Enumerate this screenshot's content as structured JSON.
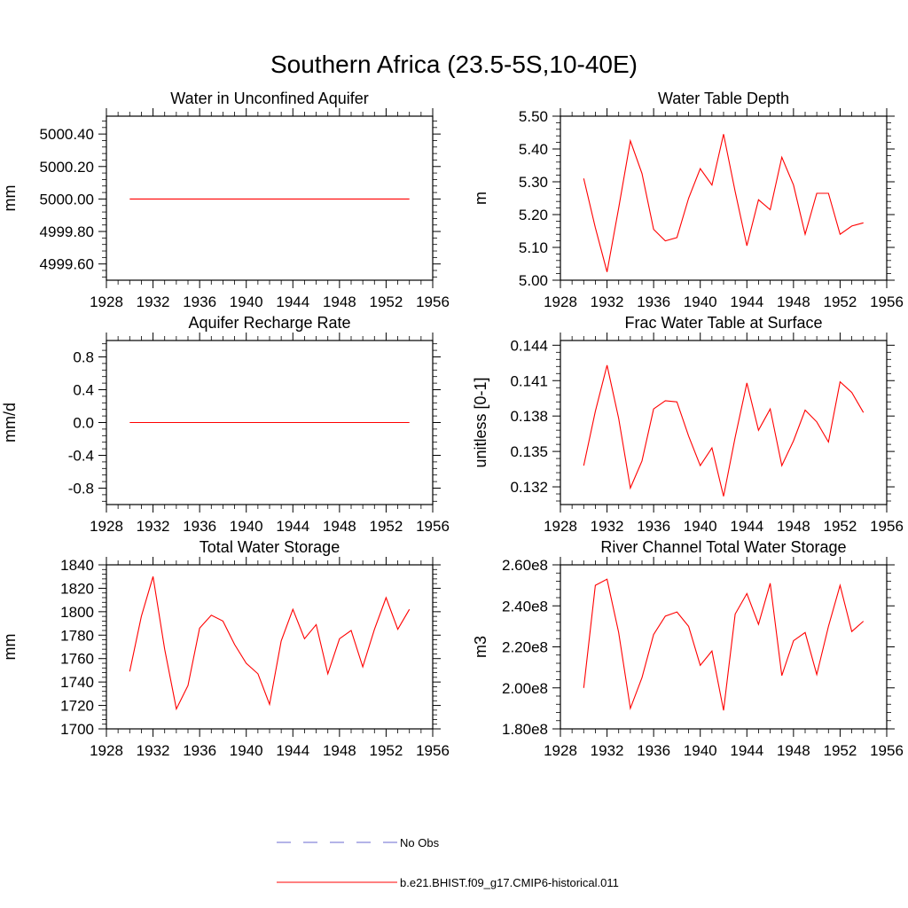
{
  "figure": {
    "title": "Southern Africa (23.5-5S,10-40E)"
  },
  "legend": {
    "placement": "bottom-center",
    "entries": [
      {
        "label": "No Obs",
        "color": "#6a6ad0",
        "style": "dashed"
      },
      {
        "label": "b.e21.BHIST.f09_g17.CMIP6-historical.011",
        "color": "#ff0000",
        "style": "solid"
      }
    ]
  },
  "chart_data": [
    {
      "type": "line",
      "title": "Water in Unconfined Aquifer",
      "ylabel": "mm",
      "xlim": [
        1928,
        1956
      ],
      "ylim": [
        4999.5,
        5000.51
      ],
      "xticks": [
        1928,
        1932,
        1936,
        1940,
        1944,
        1948,
        1952,
        1956
      ],
      "yticks": [
        4999.6,
        4999.8,
        5000.0,
        5000.2,
        5000.4
      ],
      "ytick_labels": [
        "4999.60",
        "4999.80",
        "5000.00",
        "5000.20",
        "5000.40"
      ],
      "grid": false,
      "series": [
        {
          "name": "b.e21.BHIST.f09_g17.CMIP6-historical.011",
          "color": "#ff0000",
          "x": [
            1930,
            1931,
            1932,
            1933,
            1934,
            1935,
            1936,
            1937,
            1938,
            1939,
            1940,
            1941,
            1942,
            1943,
            1944,
            1945,
            1946,
            1947,
            1948,
            1949,
            1950,
            1951,
            1952,
            1953,
            1954
          ],
          "y": [
            5000,
            5000,
            5000,
            5000,
            5000,
            5000,
            5000,
            5000,
            5000,
            5000,
            5000,
            5000,
            5000,
            5000,
            5000,
            5000,
            5000,
            5000,
            5000,
            5000,
            5000,
            5000,
            5000,
            5000,
            5000
          ]
        }
      ]
    },
    {
      "type": "line",
      "title": "Water Table Depth",
      "ylabel": "m",
      "xlim": [
        1928,
        1956
      ],
      "ylim": [
        5.0,
        5.5
      ],
      "xticks": [
        1928,
        1932,
        1936,
        1940,
        1944,
        1948,
        1952,
        1956
      ],
      "yticks": [
        5.0,
        5.1,
        5.2,
        5.3,
        5.4,
        5.5
      ],
      "ytick_labels": [
        "5.00",
        "5.10",
        "5.20",
        "5.30",
        "5.40",
        "5.50"
      ],
      "grid": false,
      "series": [
        {
          "name": "b.e21.BHIST.f09_g17.CMIP6-historical.011",
          "color": "#ff0000",
          "x": [
            1930,
            1931,
            1932,
            1933,
            1934,
            1935,
            1936,
            1937,
            1938,
            1939,
            1940,
            1941,
            1942,
            1943,
            1944,
            1945,
            1946,
            1947,
            1948,
            1949,
            1950,
            1951,
            1952,
            1953,
            1954
          ],
          "y": [
            5.31,
            5.16,
            5.025,
            5.22,
            5.425,
            5.325,
            5.155,
            5.12,
            5.13,
            5.25,
            5.34,
            5.29,
            5.445,
            5.27,
            5.105,
            5.245,
            5.215,
            5.375,
            5.29,
            5.14,
            5.265,
            5.265,
            5.14,
            5.165,
            5.175
          ]
        }
      ]
    },
    {
      "type": "line",
      "title": "Aquifer Recharge Rate",
      "ylabel": "mm/d",
      "xlim": [
        1928,
        1956
      ],
      "ylim": [
        -1.0,
        1.0
      ],
      "xticks": [
        1928,
        1932,
        1936,
        1940,
        1944,
        1948,
        1952,
        1956
      ],
      "yticks": [
        -0.8,
        -0.4,
        0.0,
        0.4,
        0.8
      ],
      "ytick_labels": [
        "-0.8",
        "-0.4",
        "0.0",
        "0.4",
        "0.8"
      ],
      "grid": false,
      "series": [
        {
          "name": "b.e21.BHIST.f09_g17.CMIP6-historical.011",
          "color": "#ff0000",
          "x": [
            1930,
            1931,
            1932,
            1933,
            1934,
            1935,
            1936,
            1937,
            1938,
            1939,
            1940,
            1941,
            1942,
            1943,
            1944,
            1945,
            1946,
            1947,
            1948,
            1949,
            1950,
            1951,
            1952,
            1953,
            1954
          ],
          "y": [
            0,
            0,
            0,
            0,
            0,
            0,
            0,
            0,
            0,
            0,
            0,
            0,
            0,
            0,
            0,
            0,
            0,
            0,
            0,
            0,
            0,
            0,
            0,
            0,
            0
          ]
        }
      ]
    },
    {
      "type": "line",
      "title": "Frac Water Table at Surface",
      "ylabel": "unitless [0-1]",
      "xlim": [
        1928,
        1956
      ],
      "ylim": [
        0.1305,
        0.1444
      ],
      "xticks": [
        1928,
        1932,
        1936,
        1940,
        1944,
        1948,
        1952,
        1956
      ],
      "yticks": [
        0.132,
        0.135,
        0.138,
        0.141,
        0.144
      ],
      "ytick_labels": [
        "0.132",
        "0.135",
        "0.138",
        "0.141",
        "0.144"
      ],
      "grid": false,
      "series": [
        {
          "name": "b.e21.BHIST.f09_g17.CMIP6-historical.011",
          "color": "#ff0000",
          "x": [
            1930,
            1931,
            1932,
            1933,
            1934,
            1935,
            1936,
            1937,
            1938,
            1939,
            1940,
            1941,
            1942,
            1943,
            1944,
            1945,
            1946,
            1947,
            1948,
            1949,
            1950,
            1951,
            1952,
            1953,
            1954
          ],
          "y": [
            0.1338,
            0.1384,
            0.1423,
            0.1378,
            0.1319,
            0.1342,
            0.1386,
            0.1393,
            0.1392,
            0.1363,
            0.1338,
            0.1353,
            0.1312,
            0.1362,
            0.1408,
            0.1368,
            0.1386,
            0.1338,
            0.1359,
            0.1385,
            0.1375,
            0.1358,
            0.1409,
            0.14,
            0.1383
          ]
        }
      ]
    },
    {
      "type": "line",
      "title": "Total Water Storage",
      "ylabel": "mm",
      "xlim": [
        1928,
        1956
      ],
      "ylim": [
        1700,
        1840
      ],
      "xticks": [
        1928,
        1932,
        1936,
        1940,
        1944,
        1948,
        1952,
        1956
      ],
      "yticks": [
        1700,
        1720,
        1740,
        1760,
        1780,
        1800,
        1820,
        1840
      ],
      "ytick_labels": [
        "1700",
        "1720",
        "1740",
        "1760",
        "1780",
        "1800",
        "1820",
        "1840"
      ],
      "grid": false,
      "series": [
        {
          "name": "b.e21.BHIST.f09_g17.CMIP6-historical.011",
          "color": "#ff0000",
          "x": [
            1930,
            1931,
            1932,
            1933,
            1934,
            1935,
            1936,
            1937,
            1938,
            1939,
            1940,
            1941,
            1942,
            1943,
            1944,
            1945,
            1946,
            1947,
            1948,
            1949,
            1950,
            1951,
            1952,
            1953,
            1954
          ],
          "y": [
            1749,
            1796,
            1830,
            1768,
            1717,
            1737,
            1786,
            1797,
            1792,
            1772,
            1756,
            1747,
            1721,
            1775,
            1802,
            1777,
            1789,
            1747,
            1777,
            1784,
            1753,
            1785,
            1812,
            1785,
            1802
          ]
        }
      ]
    },
    {
      "type": "line",
      "title": "River Channel Total Water Storage",
      "ylabel": "m3",
      "xlim": [
        1928,
        1956
      ],
      "ylim": [
        180000000,
        260000000
      ],
      "xticks": [
        1928,
        1932,
        1936,
        1940,
        1944,
        1948,
        1952,
        1956
      ],
      "yticks": [
        180000000,
        200000000,
        220000000,
        240000000,
        260000000
      ],
      "ytick_labels": [
        "1.80e8",
        "2.00e8",
        "2.20e8",
        "2.40e8",
        "2.60e8"
      ],
      "grid": false,
      "series": [
        {
          "name": "b.e21.BHIST.f09_g17.CMIP6-historical.011",
          "color": "#ff0000",
          "x": [
            1930,
            1931,
            1932,
            1933,
            1934,
            1935,
            1936,
            1937,
            1938,
            1939,
            1940,
            1941,
            1942,
            1943,
            1944,
            1945,
            1946,
            1947,
            1948,
            1949,
            1950,
            1951,
            1952,
            1953,
            1954
          ],
          "y": [
            200000000,
            250000000,
            253000000,
            227000000,
            190000000,
            205000000,
            226000000,
            235000000,
            237000000,
            230000000,
            211000000,
            218000000,
            189000000,
            236000000,
            246000000,
            231000000,
            251000000,
            206000000,
            223000000,
            227000000,
            206500000,
            230000000,
            250000000,
            227500000,
            232500000
          ]
        }
      ]
    }
  ]
}
